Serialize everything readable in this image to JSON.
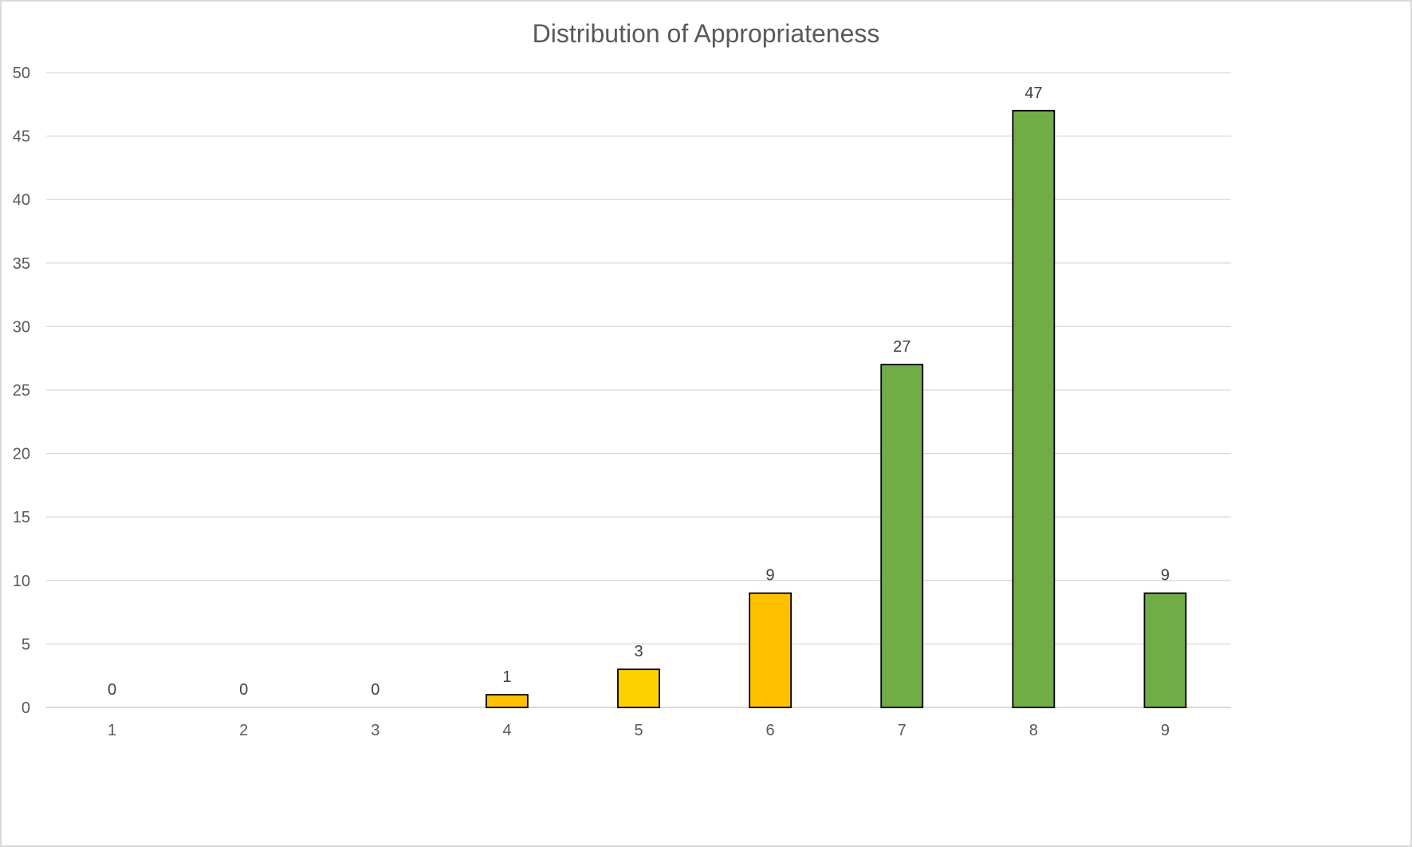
{
  "chart_data": {
    "type": "bar",
    "title": "Distribution of Appropriateness",
    "xlabel": "",
    "ylabel": "",
    "categories": [
      "1",
      "2",
      "3",
      "4",
      "5",
      "6",
      "7",
      "8",
      "9"
    ],
    "values": [
      0,
      0,
      0,
      1,
      3,
      9,
      27,
      47,
      9
    ],
    "bar_colors": [
      "#FFC000",
      "#FFC000",
      "#FFC000",
      "#FFC000",
      "#FFD000",
      "#FFC000",
      "#70AD47",
      "#70AD47",
      "#70AD47"
    ],
    "bar_outline_color": "#000000",
    "gridline_color": "#D9D9D9",
    "ylim": [
      0,
      50
    ],
    "yticks": [
      0,
      5,
      10,
      15,
      20,
      25,
      30,
      35,
      40,
      45,
      50
    ],
    "grid": true,
    "data_labels": true,
    "legend": "none"
  }
}
